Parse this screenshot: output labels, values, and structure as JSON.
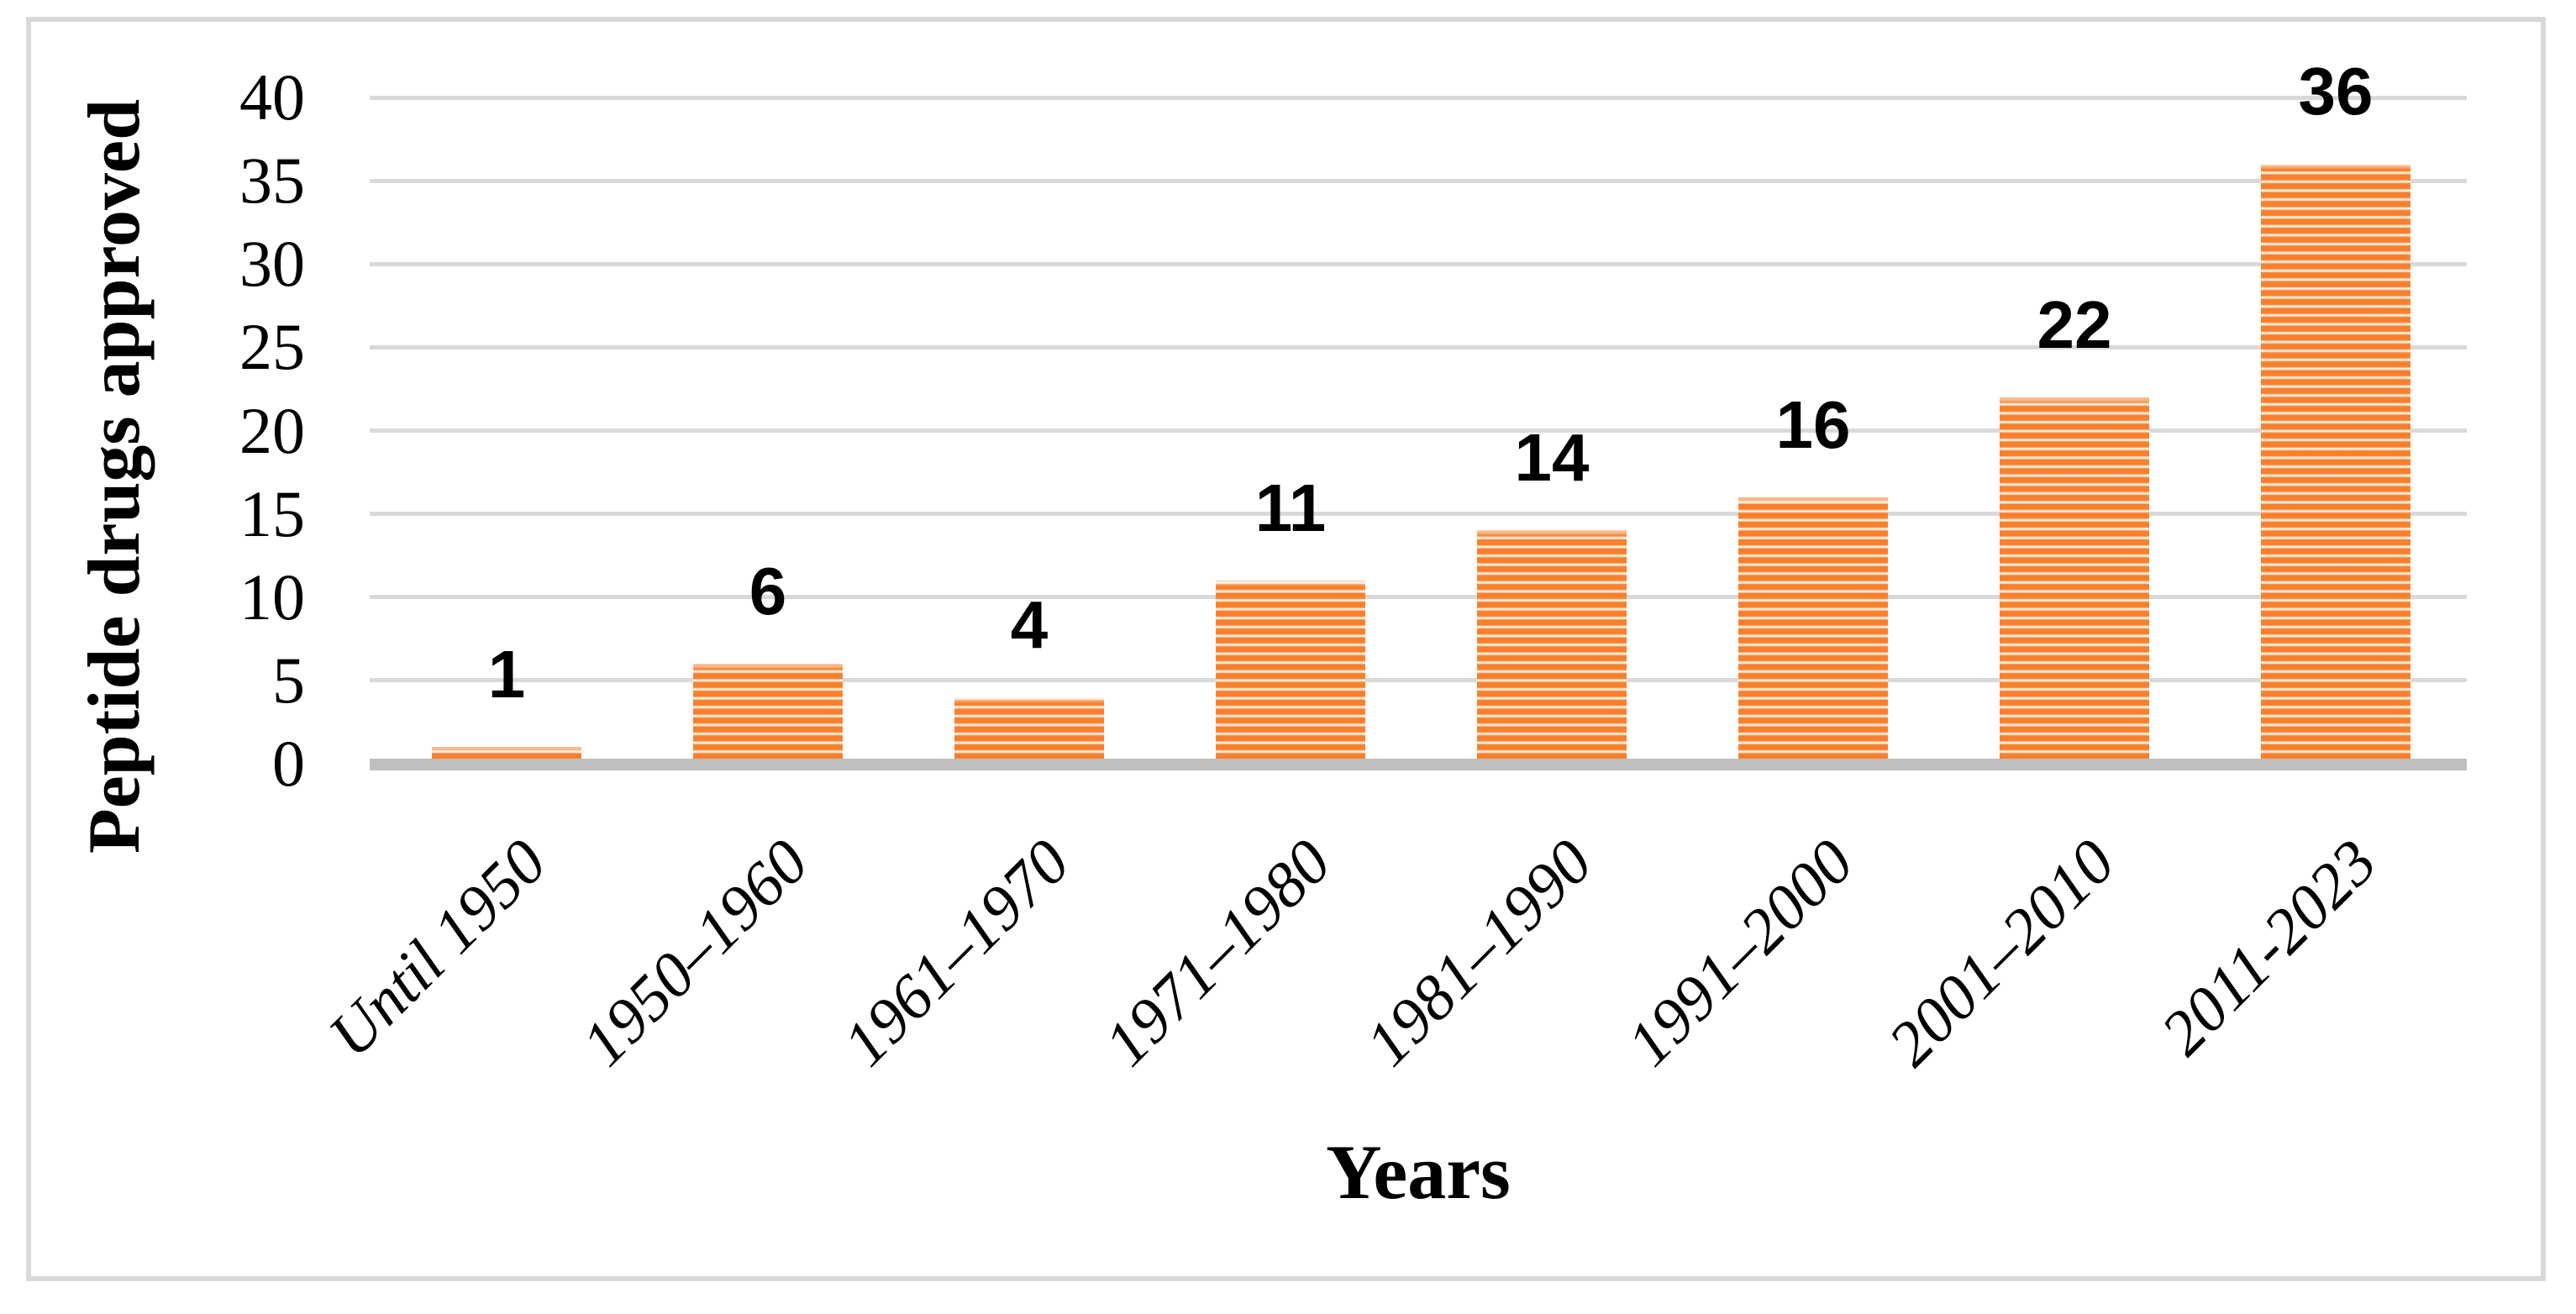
{
  "figure": {
    "background": "#ffffff",
    "border_color": "#d9d9d9",
    "gridline_color": "#d9d9d9",
    "axis_line_color": "#bfbfbf",
    "text_color": "#000000"
  },
  "chart_data": {
    "type": "bar",
    "title": "",
    "categories": [
      "Until 1950",
      "1950–1960",
      "1961–1970",
      "1971–1980",
      "1981–1990",
      "1991–2000",
      "2001–2010",
      "2011-2023"
    ],
    "values": [
      1,
      6,
      4,
      11,
      14,
      16,
      22,
      36
    ],
    "data_labels": [
      "1",
      "6",
      "4",
      "11",
      "14",
      "16",
      "22",
      "36"
    ],
    "xlabel": "Years",
    "ylabel": "Peptide drugs approved",
    "ylim": [
      0,
      40
    ],
    "ytick_step": 5,
    "ytick_labels": [
      "0",
      "5",
      "10",
      "15",
      "20",
      "25",
      "30",
      "35",
      "40"
    ],
    "grid": "horizontal-major",
    "legend": false,
    "bar_style": "horizontal-stripes",
    "bar_color": "#f8802d",
    "bar_stripe_mid": "#fcd9bd",
    "bar_stripe_light": "#fff3ea"
  }
}
